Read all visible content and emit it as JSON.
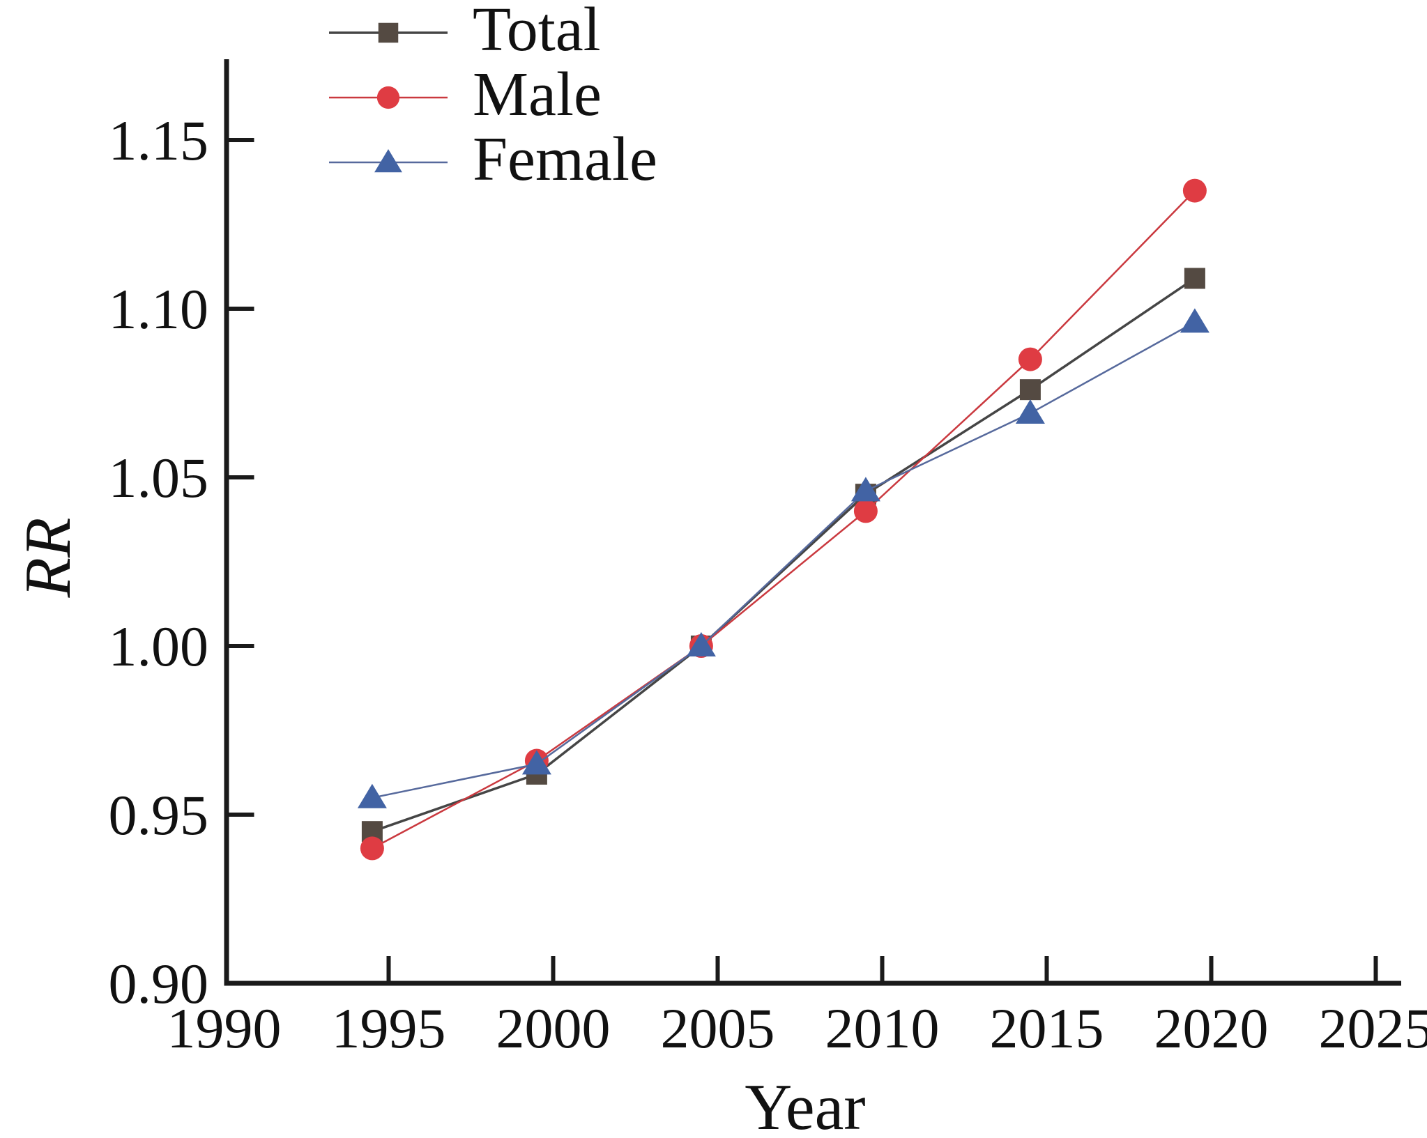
{
  "figure": {
    "background": "#ffffff",
    "text_color": "#111111",
    "axis_color": "#1a1a1a"
  },
  "chart_data": {
    "type": "line",
    "title": "",
    "xlabel": "Year",
    "ylabel": "RR",
    "grid": false,
    "legend_position": "top-left",
    "xlim": [
      1990,
      2025.8
    ],
    "ylim": [
      0.9,
      1.1735
    ],
    "x_ticks": [
      1995,
      2000,
      2005,
      2010,
      2015,
      2020,
      2025
    ],
    "x_tick_labels": [
      "1990",
      "1995",
      "2000",
      "2005",
      "2010",
      "2015",
      "2020",
      "2025"
    ],
    "x_tick_label_positions": [
      1990,
      1995,
      2000,
      2005,
      2010,
      2015,
      2020,
      2025
    ],
    "y_ticks": [
      0.95,
      1.0,
      1.05,
      1.1,
      1.15
    ],
    "y_tick_labels": [
      "0.90",
      "0.95",
      "1.00",
      "1.05",
      "1.10",
      "1.15"
    ],
    "y_tick_label_values": [
      0.9,
      0.95,
      1.0,
      1.05,
      1.1,
      1.15
    ],
    "x": [
      1994.5,
      1999.5,
      2004.5,
      2009.5,
      2014.5,
      2019.5
    ],
    "series": [
      {
        "name": "Total",
        "marker": "square",
        "marker_color": "#544a42",
        "line_color": "#454545",
        "line_width": 3.5,
        "values": [
          0.945,
          0.962,
          1.0,
          1.045,
          1.076,
          1.109
        ]
      },
      {
        "name": "Male",
        "marker": "circle",
        "marker_color": "#df3c43",
        "line_color": "#ca393f",
        "line_width": 2.5,
        "values": [
          0.94,
          0.966,
          1.0,
          1.04,
          1.085,
          1.135
        ]
      },
      {
        "name": "Female",
        "marker": "triangle",
        "marker_color": "#4263a4",
        "line_color": "#56699c",
        "line_width": 2.5,
        "values": [
          0.955,
          0.965,
          1.0,
          1.046,
          1.069,
          1.096
        ]
      }
    ]
  }
}
